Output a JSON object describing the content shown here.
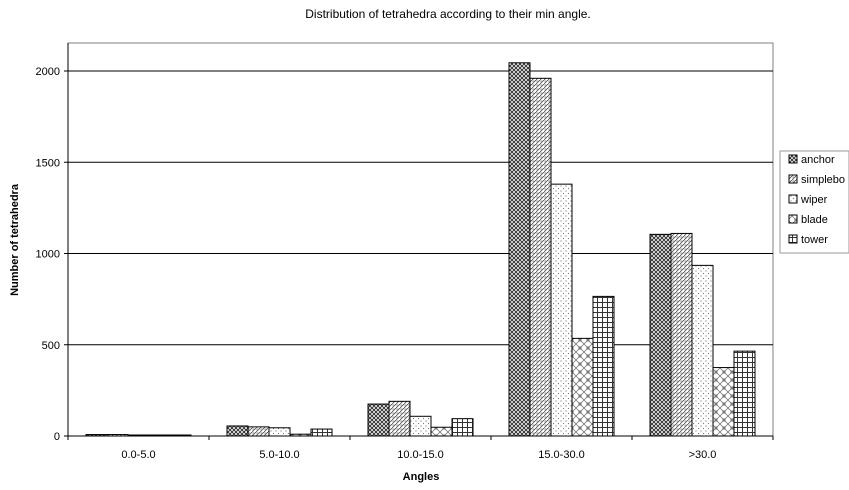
{
  "chart_data": {
    "type": "bar",
    "title": "Distribution of tetrahedra according to their min angle.",
    "xlabel": "Angles",
    "ylabel": "Number of tetrahedra",
    "categories": [
      "0.0-5.0",
      "5.0-10.0",
      "10.0-15.0",
      "15.0-30.0",
      ">30.0"
    ],
    "ylim": [
      0,
      2000
    ],
    "yticks": [
      0,
      500,
      1000,
      1500,
      2000
    ],
    "grid": true,
    "legend_position": "right",
    "series": [
      {
        "name": "anchor",
        "values": [
          8,
          55,
          175,
          2045,
          1105
        ],
        "color": "#5a5a5a",
        "pattern": "dense-crosshatch"
      },
      {
        "name": "simplebo",
        "values": [
          8,
          50,
          190,
          1960,
          1110
        ],
        "color": "#8a8a8a",
        "pattern": "diagonal-dots"
      },
      {
        "name": "wiper",
        "values": [
          2,
          45,
          108,
          1380,
          935
        ],
        "color": "#c8c8c8",
        "pattern": "sparse-dots"
      },
      {
        "name": "blade",
        "values": [
          1,
          10,
          48,
          535,
          375
        ],
        "color": "#9a9a9a",
        "pattern": "diagonal-weave"
      },
      {
        "name": "tower",
        "values": [
          1,
          38,
          95,
          765,
          465
        ],
        "color": "#6a6a6a",
        "pattern": "grid"
      }
    ]
  }
}
